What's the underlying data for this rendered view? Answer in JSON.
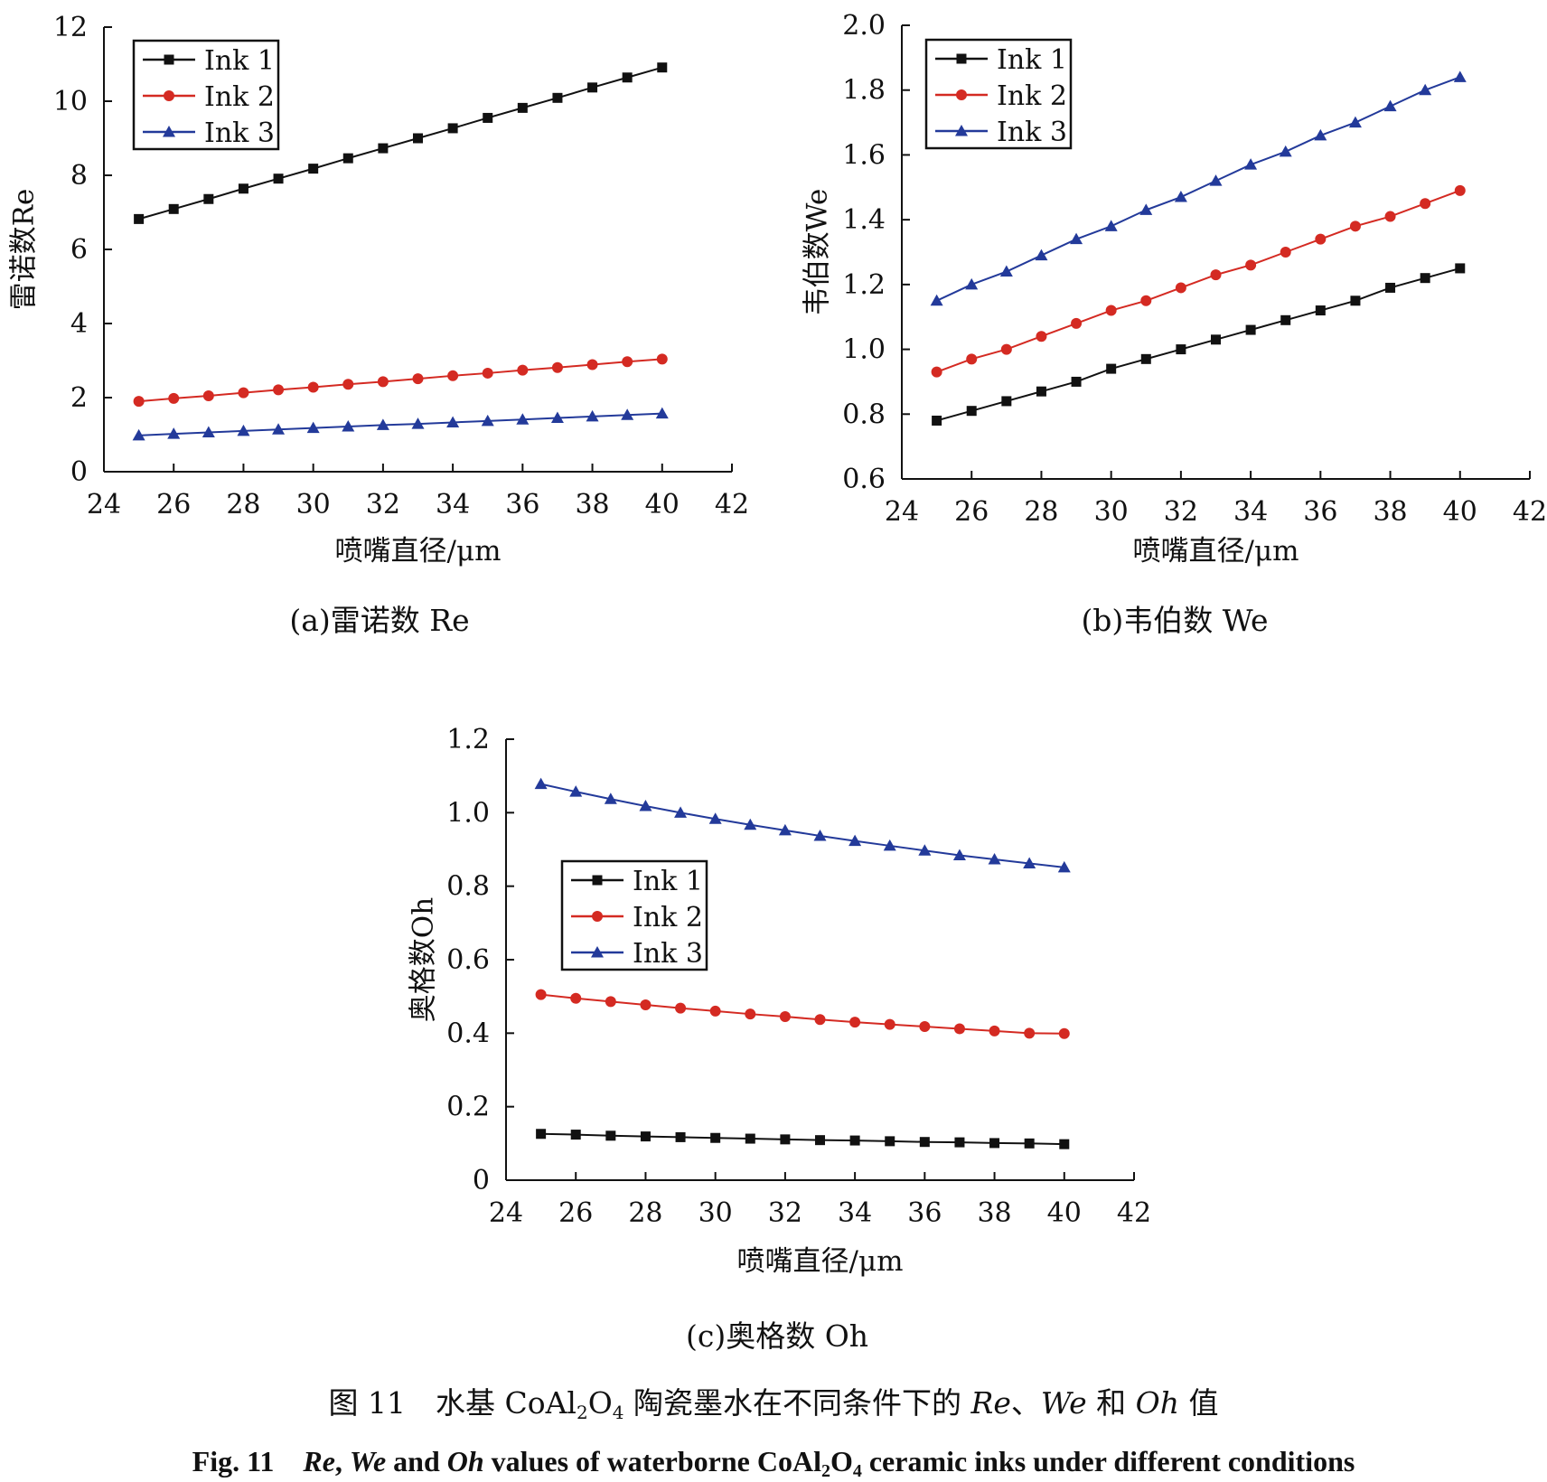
{
  "chart_data": [
    {
      "type": "line",
      "ylabel": "雷诺数Re",
      "xlabel": "喷嘴直径/μm",
      "caption": "(a)雷诺数 Re",
      "xlim": [
        24,
        42
      ],
      "ylim": [
        0,
        12
      ],
      "xticks": [
        24,
        26,
        28,
        30,
        32,
        34,
        36,
        38,
        40,
        42
      ],
      "yticks": [
        "0",
        "2",
        "4",
        "6",
        "8",
        "10",
        "12"
      ],
      "ytick_values": [
        0,
        2,
        4,
        6,
        8,
        10,
        12
      ],
      "legend_position": "top-left",
      "x": [
        25,
        26,
        27,
        28,
        29,
        30,
        31,
        32,
        33,
        34,
        35,
        36,
        37,
        38,
        39,
        40
      ],
      "series": [
        {
          "name": "Ink 1",
          "color": "#111111",
          "marker": "square",
          "values": [
            6.82,
            7.09,
            7.36,
            7.64,
            7.91,
            8.18,
            8.46,
            8.73,
            9.0,
            9.27,
            9.55,
            9.82,
            10.09,
            10.37,
            10.64,
            10.91
          ]
        },
        {
          "name": "Ink 2",
          "color": "#d42a22",
          "marker": "circle",
          "values": [
            1.9,
            1.98,
            2.05,
            2.13,
            2.21,
            2.28,
            2.36,
            2.43,
            2.51,
            2.59,
            2.66,
            2.74,
            2.81,
            2.89,
            2.97,
            3.04
          ]
        },
        {
          "name": "Ink 3",
          "color": "#233a9a",
          "marker": "triangle",
          "values": [
            0.98,
            1.02,
            1.06,
            1.1,
            1.14,
            1.18,
            1.22,
            1.26,
            1.29,
            1.33,
            1.37,
            1.41,
            1.45,
            1.49,
            1.53,
            1.57
          ]
        }
      ]
    },
    {
      "type": "line",
      "ylabel": "韦伯数We",
      "xlabel": "喷嘴直径/μm",
      "caption": "(b)韦伯数 We",
      "xlim": [
        24,
        42
      ],
      "ylim": [
        0.6,
        2.0
      ],
      "xticks": [
        24,
        26,
        28,
        30,
        32,
        34,
        36,
        38,
        40,
        42
      ],
      "yticks": [
        "0.6",
        "0.8",
        "1.0",
        "1.2",
        "1.4",
        "1.6",
        "1.8",
        "2.0"
      ],
      "ytick_values": [
        0.6,
        0.8,
        1.0,
        1.2,
        1.4,
        1.6,
        1.8,
        2.0
      ],
      "legend_position": "top-left",
      "x": [
        25,
        26,
        27,
        28,
        29,
        30,
        31,
        32,
        33,
        34,
        35,
        36,
        37,
        38,
        39,
        40
      ],
      "series": [
        {
          "name": "Ink 1",
          "color": "#111111",
          "marker": "square",
          "values": [
            0.78,
            0.81,
            0.84,
            0.87,
            0.9,
            0.94,
            0.97,
            1.0,
            1.03,
            1.06,
            1.09,
            1.12,
            1.15,
            1.19,
            1.22,
            1.25
          ]
        },
        {
          "name": "Ink 2",
          "color": "#d42a22",
          "marker": "circle",
          "values": [
            0.93,
            0.97,
            1.0,
            1.04,
            1.08,
            1.12,
            1.15,
            1.19,
            1.23,
            1.26,
            1.3,
            1.34,
            1.38,
            1.41,
            1.45,
            1.49
          ]
        },
        {
          "name": "Ink 3",
          "color": "#233a9a",
          "marker": "triangle",
          "values": [
            1.15,
            1.2,
            1.24,
            1.29,
            1.34,
            1.38,
            1.43,
            1.47,
            1.52,
            1.57,
            1.61,
            1.66,
            1.7,
            1.75,
            1.8,
            1.84
          ]
        }
      ]
    },
    {
      "type": "line",
      "ylabel": "奥格数Oh",
      "xlabel": "喷嘴直径/μm",
      "caption": "(c)奥格数 Oh",
      "xlim": [
        24,
        42
      ],
      "ylim": [
        0,
        1.2
      ],
      "xticks": [
        24,
        26,
        28,
        30,
        32,
        34,
        36,
        38,
        40,
        42
      ],
      "yticks": [
        "0",
        "0.2",
        "0.4",
        "0.6",
        "0.8",
        "1.0",
        "1.2"
      ],
      "ytick_values": [
        0,
        0.2,
        0.4,
        0.6,
        0.8,
        1.0,
        1.2
      ],
      "legend_position": "center-left",
      "x": [
        25,
        26,
        27,
        28,
        29,
        30,
        31,
        32,
        33,
        34,
        35,
        36,
        37,
        38,
        39,
        40
      ],
      "series": [
        {
          "name": "Ink 1",
          "color": "#111111",
          "marker": "square",
          "values": [
            0.126,
            0.124,
            0.121,
            0.119,
            0.117,
            0.115,
            0.113,
            0.111,
            0.109,
            0.108,
            0.106,
            0.104,
            0.103,
            0.101,
            0.1,
            0.098
          ]
        },
        {
          "name": "Ink 2",
          "color": "#d42a22",
          "marker": "circle",
          "values": [
            0.505,
            0.495,
            0.486,
            0.477,
            0.468,
            0.46,
            0.452,
            0.445,
            0.437,
            0.43,
            0.424,
            0.418,
            0.412,
            0.406,
            0.4,
            0.399
          ]
        },
        {
          "name": "Ink 3",
          "color": "#233a9a",
          "marker": "triangle",
          "values": [
            1.078,
            1.057,
            1.037,
            1.018,
            1.0,
            0.983,
            0.967,
            0.952,
            0.937,
            0.923,
            0.91,
            0.897,
            0.884,
            0.873,
            0.862,
            0.851
          ]
        }
      ]
    }
  ],
  "figure_caption": {
    "zh_prefix": "图 11　水基 CoAl",
    "zh_sub1": "2",
    "zh_mid": "O",
    "zh_sub2": "4",
    "zh_rest1": " 陶瓷墨水在不同条件下的 ",
    "zh_re": "Re",
    "zh_sep1": "、",
    "zh_we": "We",
    "zh_and": " 和 ",
    "zh_oh": "Oh",
    "zh_end": " 值",
    "en_prefix": "Fig. 11　",
    "en_re": "Re",
    "en_sep": ", ",
    "en_we": "We",
    "en_and": " and ",
    "en_oh": "Oh",
    "en_mid": " values of waterborne CoAl",
    "en_sub1": "2",
    "en_o": "O",
    "en_sub2": "4",
    "en_end": " ceramic inks under different conditions"
  }
}
